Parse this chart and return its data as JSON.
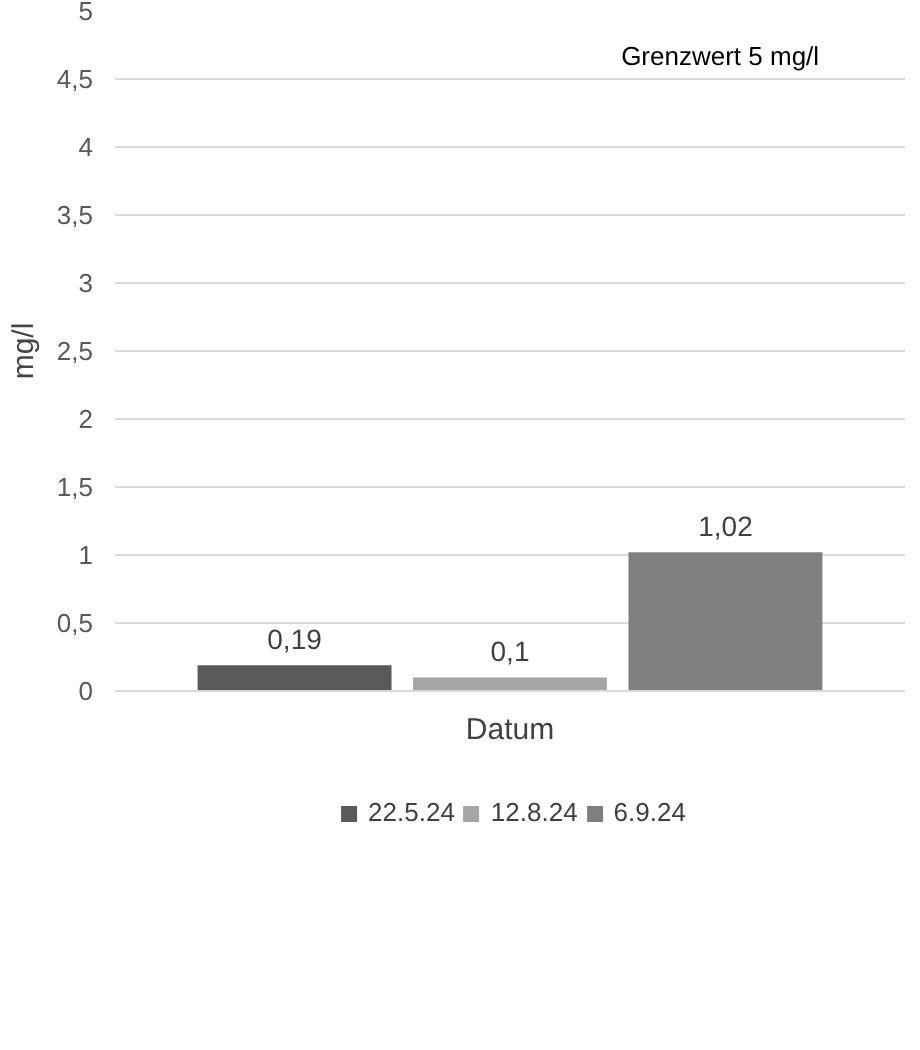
{
  "chart_data": {
    "type": "bar",
    "ylabel": "mg/l",
    "categories": [
      "Datum"
    ],
    "series": [
      {
        "name": "22.5.24",
        "color": "#595959",
        "values": [
          0.19
        ],
        "value_labels": [
          "0,19"
        ]
      },
      {
        "name": "12.8.24",
        "color": "#a6a6a6",
        "values": [
          0.1
        ],
        "value_labels": [
          "0,1"
        ]
      },
      {
        "name": "6.9.24",
        "color": "#7f7f7f",
        "values": [
          1.02
        ],
        "value_labels": [
          "1,02"
        ]
      }
    ],
    "ylim": [
      0,
      5
    ],
    "yticks": [
      0,
      {
        "value": 0.5,
        "label": "0,5"
      },
      1,
      {
        "value": 1.5,
        "label": "1,5"
      },
      2,
      {
        "value": 2.5,
        "label": "2,5"
      },
      3,
      {
        "value": 3.5,
        "label": "3,5"
      },
      4,
      {
        "value": 4.5,
        "label": "4,5"
      },
      5
    ],
    "grid": "y",
    "legend": "bottom",
    "annotations": [
      "Grenzwert 5 mg/l"
    ]
  }
}
